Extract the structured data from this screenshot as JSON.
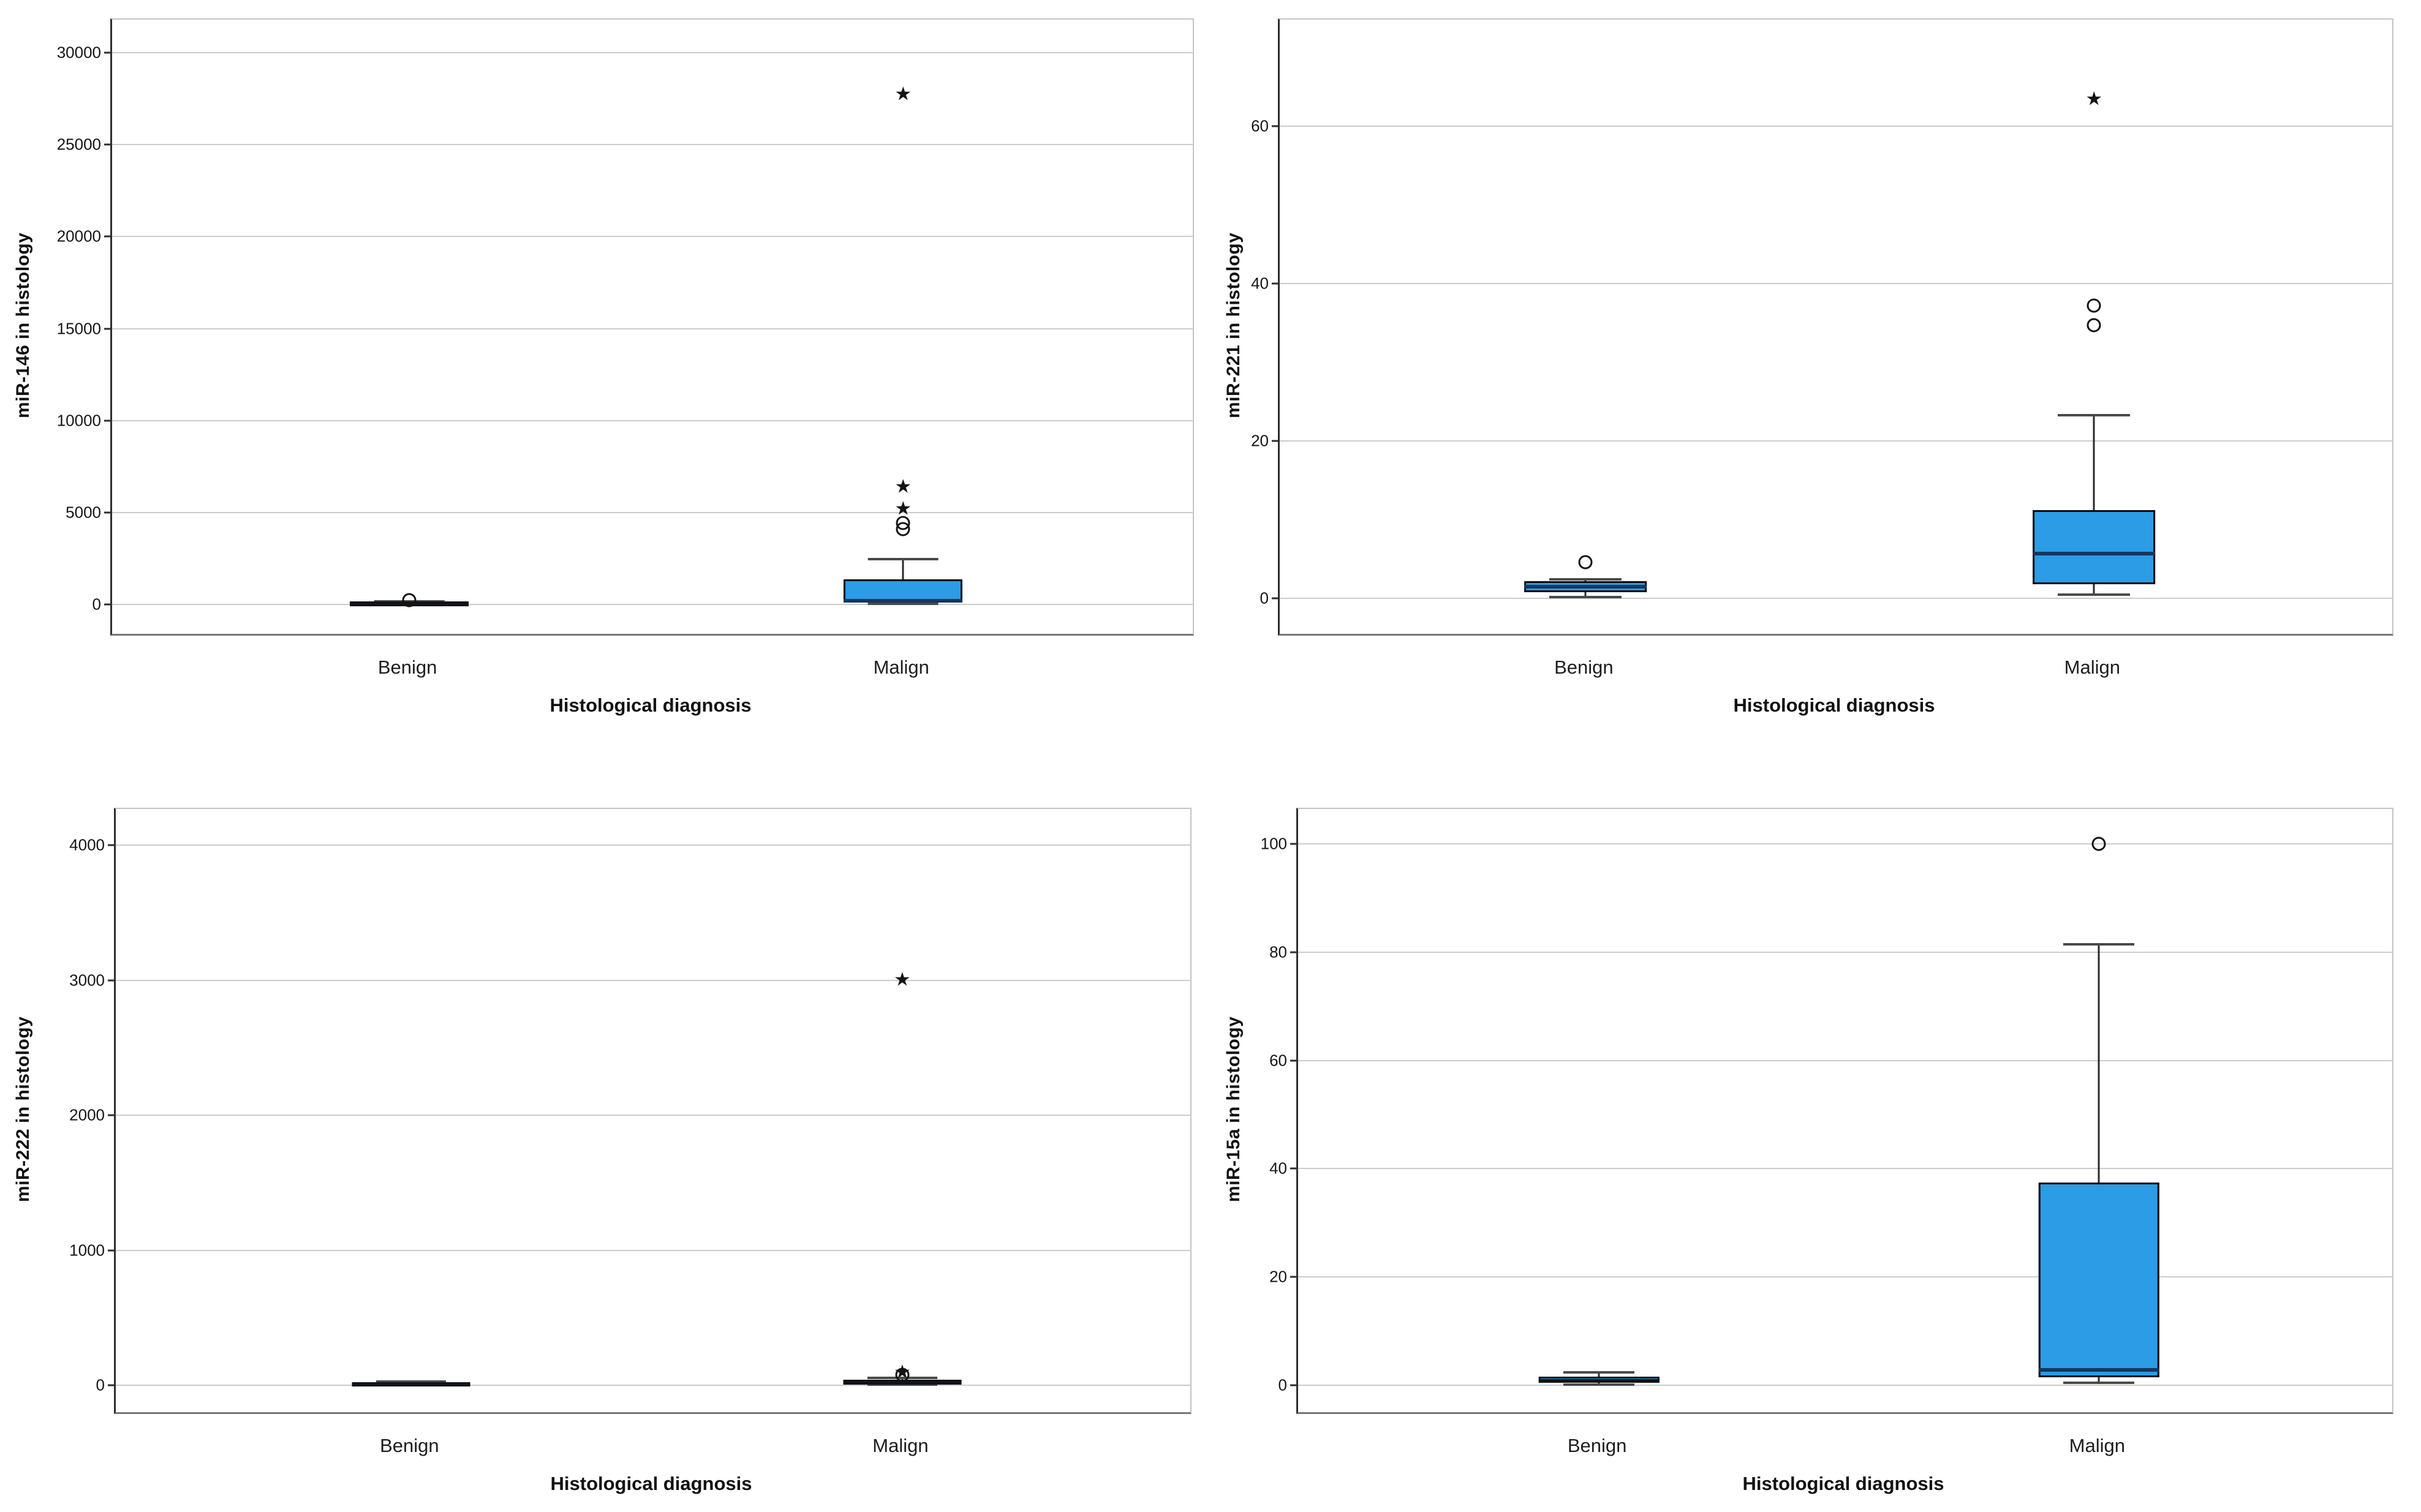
{
  "figure": {
    "background": "#ffffff",
    "grid_layout": "2x2",
    "colors": {
      "box_fill": "#2B9CE5",
      "box_border": "#0a0a0a",
      "median_line": "#16365E",
      "whisker": "#2b2b2b",
      "gridline": "#cccccc",
      "axis": "#2e2e2e",
      "text": "#111111"
    },
    "marker_legend": {
      "circle": "mild outlier",
      "star": "extreme outlier"
    }
  },
  "chart_data": [
    {
      "type": "box",
      "title": "",
      "ylabel": "miR-146 in histology",
      "xlabel": "Histological diagnosis",
      "categories": [
        "Benign",
        "Malign"
      ],
      "yticks": [
        0,
        5000,
        10000,
        15000,
        20000,
        25000,
        30000
      ],
      "ydomain": [
        -1600,
        31800
      ],
      "grid": true,
      "legend": "none",
      "series": [
        {
          "name": "Benign",
          "q1": 20,
          "median": 60,
          "q3": 110,
          "whisker_low": 5,
          "whisker_high": 150,
          "outliers": [
            {
              "value": 220,
              "marker": "circle"
            }
          ]
        },
        {
          "name": "Malign",
          "q1": 90,
          "median": 200,
          "q3": 1360,
          "whisker_low": 30,
          "whisker_high": 2470,
          "outliers": [
            {
              "value": 4100,
              "marker": "circle"
            },
            {
              "value": 4440,
              "marker": "circle"
            },
            {
              "value": 5230,
              "marker": "star"
            },
            {
              "value": 6440,
              "marker": "star"
            },
            {
              "value": 27760,
              "marker": "star"
            }
          ]
        }
      ]
    },
    {
      "type": "box",
      "title": "",
      "ylabel": "miR-221 in histology",
      "xlabel": "Histological diagnosis",
      "categories": [
        "Benign",
        "Malign"
      ],
      "yticks": [
        0,
        20,
        40,
        60
      ],
      "ydomain": [
        -4.5,
        73.5
      ],
      "grid": true,
      "legend": "none",
      "series": [
        {
          "name": "Benign",
          "q1": 0.8,
          "median": 1.5,
          "q3": 2.2,
          "whisker_low": 0.2,
          "whisker_high": 2.4,
          "outliers": [
            {
              "value": 4.6,
              "marker": "circle"
            }
          ]
        },
        {
          "name": "Malign",
          "q1": 1.8,
          "median": 5.7,
          "q3": 11.2,
          "whisker_low": 0.5,
          "whisker_high": 23.3,
          "outliers": [
            {
              "value": 34.7,
              "marker": "circle"
            },
            {
              "value": 37.2,
              "marker": "circle"
            },
            {
              "value": 63.5,
              "marker": "star"
            }
          ]
        }
      ]
    },
    {
      "type": "box",
      "title": "",
      "ylabel": "miR-222 in histology",
      "xlabel": "Histological diagnosis",
      "categories": [
        "Benign",
        "Malign"
      ],
      "yticks": [
        0,
        1000,
        2000,
        3000,
        4000
      ],
      "ydomain": [
        -200,
        4270
      ],
      "grid": true,
      "legend": "none",
      "series": [
        {
          "name": "Benign",
          "q1": 3,
          "median": 8,
          "q3": 18,
          "whisker_low": 1,
          "whisker_high": 25,
          "outliers": []
        },
        {
          "name": "Malign",
          "q1": 6,
          "median": 18,
          "q3": 40,
          "whisker_low": 2,
          "whisker_high": 55,
          "outliers": [
            {
              "value": 75,
              "marker": "circle"
            },
            {
              "value": 100,
              "marker": "star"
            },
            {
              "value": 3010,
              "marker": "star"
            }
          ]
        }
      ]
    },
    {
      "type": "box",
      "title": "",
      "ylabel": "miR-15a in histology",
      "xlabel": "Histological diagnosis",
      "categories": [
        "Benign",
        "Malign"
      ],
      "yticks": [
        0,
        20,
        40,
        60,
        80,
        100
      ],
      "ydomain": [
        -5,
        106.5
      ],
      "grid": true,
      "legend": "none",
      "series": [
        {
          "name": "Benign",
          "q1": 0.4,
          "median": 0.8,
          "q3": 1.6,
          "whisker_low": 0.1,
          "whisker_high": 2.4,
          "outliers": []
        },
        {
          "name": "Malign",
          "q1": 1.4,
          "median": 2.8,
          "q3": 37.4,
          "whisker_low": 0.4,
          "whisker_high": 81.5,
          "outliers": [
            {
              "value": 100,
              "marker": "circle"
            }
          ]
        }
      ]
    }
  ]
}
